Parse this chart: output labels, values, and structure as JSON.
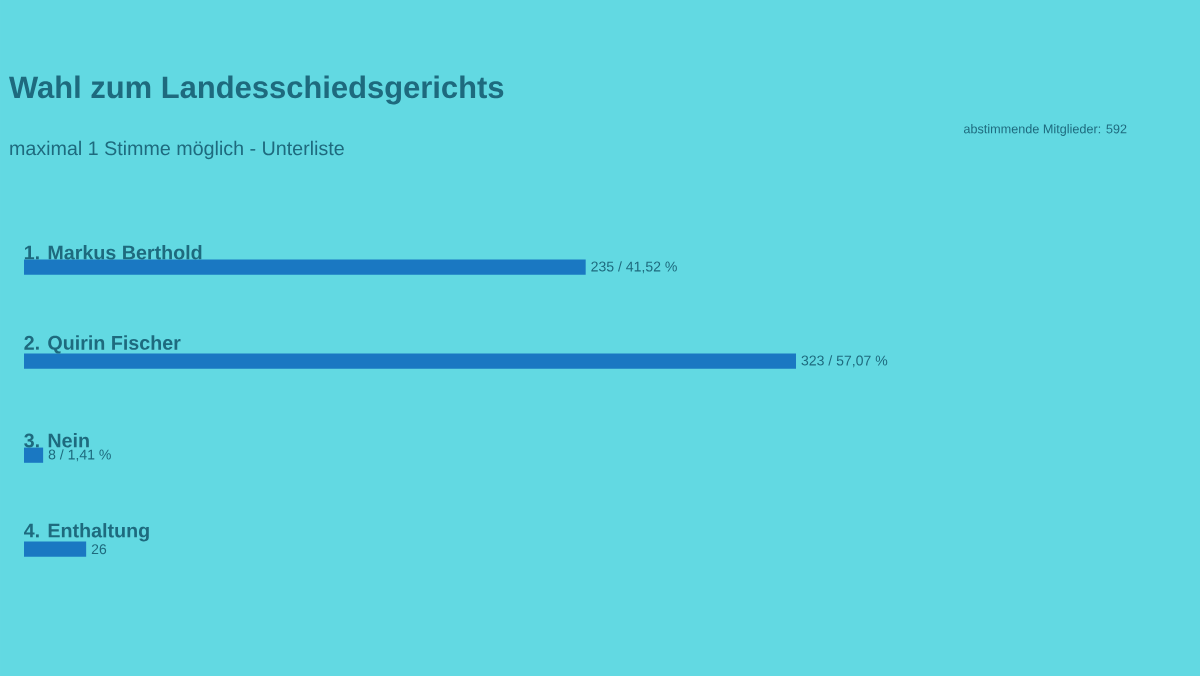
{
  "chart_data": {
    "type": "bar",
    "orientation": "horizontal",
    "title": "Wahl zum Landesschiedsgerichts",
    "subtitle": "maximal 1 Stimme möglich - Unterliste",
    "annotations": [
      "abstimmende Mitglieder: 592"
    ],
    "categories": [
      "1. Markus Berthold",
      "2. Quirin Fischer",
      "3. Nein",
      "4. Enthaltung"
    ],
    "values": [
      235,
      323,
      8,
      26
    ],
    "value_labels": [
      "235 / 41,52 %",
      "323 / 57,07 %",
      "8 / 1,41 %",
      "26"
    ],
    "color": "#1a78c2"
  }
}
